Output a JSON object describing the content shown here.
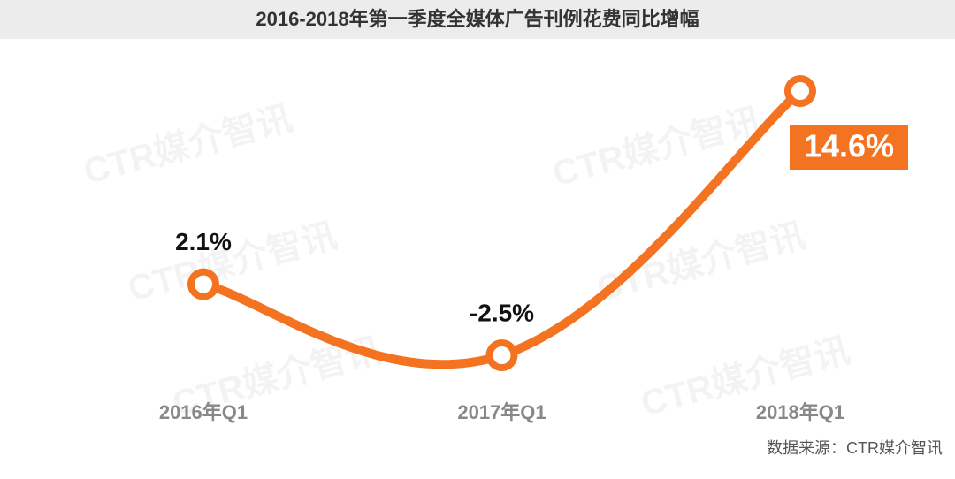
{
  "chart_data": {
    "type": "line",
    "title": "2016-2018年第一季度全媒体广告刊例花费同比增幅",
    "categories": [
      "2016年Q1",
      "2017年Q1",
      "2018年Q1"
    ],
    "series": [
      {
        "color": "#f47321",
        "values": [
          2.1,
          -2.5,
          14.6
        ],
        "value_labels": [
          "2.1%",
          "-2.5%",
          "14.6%"
        ]
      }
    ],
    "source": "数据来源：CTR媒介智讯",
    "watermark": "CTR媒介智讯"
  }
}
